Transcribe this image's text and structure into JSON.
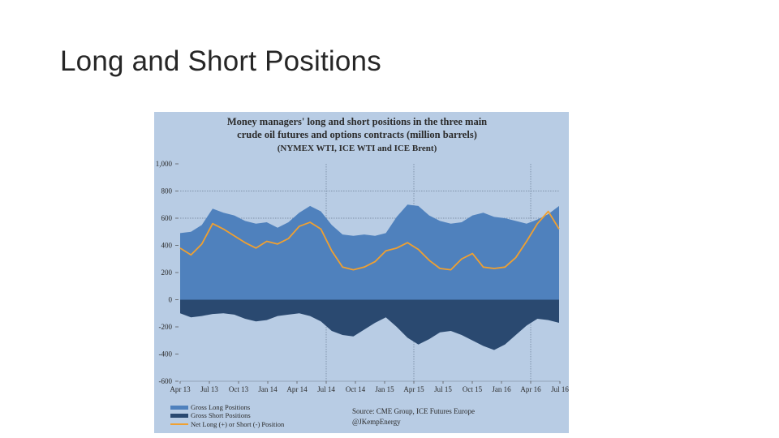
{
  "slide": {
    "title": "Long and Short Positions"
  },
  "chart_data": {
    "type": "area",
    "title_lines": [
      "Money managers' long and short positions in the three main",
      "crude oil futures and options contracts (million barrels)",
      "(NYMEX WTI, ICE WTI and ICE Brent)"
    ],
    "ylim": [
      -600,
      1000
    ],
    "y_ticks": [
      {
        "value": 1000,
        "label": "1,000"
      },
      {
        "value": 800,
        "label": "800"
      },
      {
        "value": 600,
        "label": "600"
      },
      {
        "value": 400,
        "label": "400"
      },
      {
        "value": 200,
        "label": "200"
      },
      {
        "value": 0,
        "label": "0"
      },
      {
        "value": -200,
        "label": "-200"
      },
      {
        "value": -400,
        "label": "-400"
      },
      {
        "value": -600,
        "label": "-600"
      }
    ],
    "x_start": "2013-04",
    "x_step_months": 1,
    "x_tick_labels": [
      "Apr 13",
      "Jul 13",
      "Oct 13",
      "Jan 14",
      "Apr 14",
      "Jul 14",
      "Oct 14",
      "Jan 15",
      "Apr 15",
      "Jul 15",
      "Oct 15",
      "Jan 16",
      "Apr 16",
      "Jul 16"
    ],
    "gridlines_at": [
      "Jul 14",
      "Apr 15",
      "Apr 16"
    ],
    "grid_y": [
      800,
      600
    ],
    "series": [
      {
        "name": "Gross Long Positions",
        "color": "#4f81bd",
        "values": [
          490,
          500,
          550,
          670,
          640,
          620,
          580,
          560,
          570,
          530,
          570,
          640,
          690,
          650,
          550,
          480,
          470,
          480,
          470,
          490,
          610,
          700,
          690,
          620,
          580,
          560,
          570,
          620,
          640,
          610,
          600,
          580,
          560,
          590,
          630,
          690
        ]
      },
      {
        "name": "Gross Short Positions",
        "color": "#2a4970",
        "values": [
          -100,
          -130,
          -120,
          -105,
          -100,
          -110,
          -140,
          -160,
          -150,
          -120,
          -110,
          -100,
          -120,
          -160,
          -230,
          -260,
          -270,
          -220,
          -170,
          -130,
          -200,
          -280,
          -330,
          -290,
          -240,
          -230,
          -260,
          -300,
          -340,
          -370,
          -330,
          -260,
          -190,
          -140,
          -150,
          -170
        ]
      },
      {
        "name": "Net Long (+) or Short (-) Position",
        "color": "#f0a030",
        "values": [
          380,
          330,
          410,
          560,
          520,
          470,
          420,
          380,
          430,
          410,
          450,
          540,
          570,
          520,
          360,
          240,
          220,
          240,
          280,
          360,
          380,
          420,
          370,
          290,
          230,
          220,
          300,
          340,
          240,
          230,
          240,
          310,
          430,
          560,
          650,
          520
        ]
      }
    ],
    "legend_position": "bottom-left",
    "source_lines": [
      "Source: CME Group, ICE Futures Europe",
      "@JKempEnergy"
    ]
  }
}
